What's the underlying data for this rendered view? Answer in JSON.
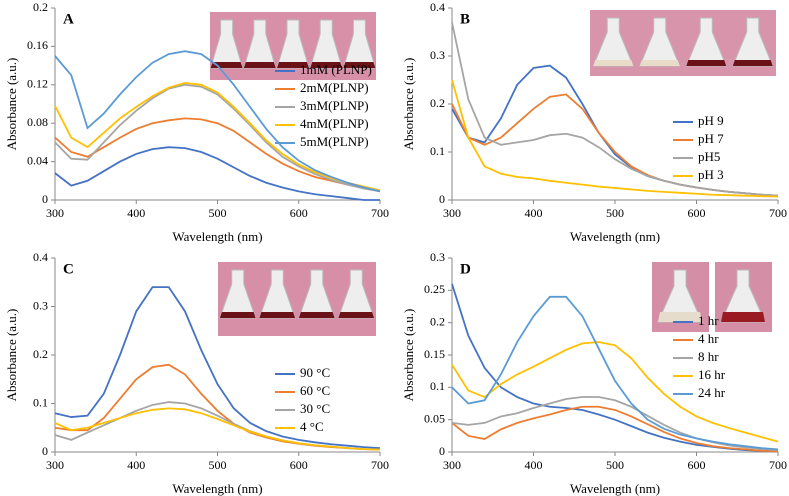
{
  "chart_data": [
    {
      "type": "line",
      "label": "A",
      "xlabel": "Wavelength (nm)",
      "ylabel": "Absorbance (a.u.)",
      "legend": "center right",
      "x": [
        300,
        320,
        340,
        360,
        380,
        400,
        420,
        440,
        460,
        480,
        500,
        520,
        540,
        560,
        580,
        600,
        620,
        640,
        660,
        680,
        700
      ],
      "xlim": [
        300,
        700
      ],
      "xticks": [
        300,
        400,
        500,
        600,
        700
      ],
      "ylim": [
        0,
        0.2
      ],
      "yticks": [
        0,
        0.04,
        0.08,
        0.12,
        0.16,
        0.2
      ],
      "series": [
        {
          "name": "1mM (PLNP)",
          "color": "#4472c4",
          "values": [
            0.028,
            0.015,
            0.02,
            0.03,
            0.04,
            0.048,
            0.053,
            0.055,
            0.054,
            0.05,
            0.043,
            0.034,
            0.025,
            0.018,
            0.013,
            0.009,
            0.006,
            0.004,
            0.002,
            0.0,
            0.0
          ]
        },
        {
          "name": "2mM(PLNP)",
          "color": "#ed7d31",
          "values": [
            0.065,
            0.05,
            0.045,
            0.055,
            0.065,
            0.074,
            0.08,
            0.083,
            0.085,
            0.084,
            0.08,
            0.072,
            0.06,
            0.048,
            0.038,
            0.03,
            0.024,
            0.02,
            0.016,
            0.013,
            0.01
          ]
        },
        {
          "name": "3mM(PLNP)",
          "color": "#a5a5a5",
          "values": [
            0.06,
            0.043,
            0.042,
            0.06,
            0.078,
            0.093,
            0.106,
            0.116,
            0.12,
            0.118,
            0.11,
            0.095,
            0.078,
            0.06,
            0.045,
            0.035,
            0.027,
            0.021,
            0.016,
            0.012,
            0.009
          ]
        },
        {
          "name": "4mM(PLNP)",
          "color": "#ffc000",
          "values": [
            0.098,
            0.065,
            0.055,
            0.07,
            0.085,
            0.097,
            0.108,
            0.117,
            0.122,
            0.12,
            0.112,
            0.097,
            0.08,
            0.062,
            0.048,
            0.037,
            0.029,
            0.023,
            0.018,
            0.014,
            0.01
          ]
        },
        {
          "name": "5mM(PLNP)",
          "color": "#5b9bd5",
          "values": [
            0.15,
            0.13,
            0.075,
            0.09,
            0.11,
            0.128,
            0.143,
            0.152,
            0.155,
            0.152,
            0.14,
            0.12,
            0.097,
            0.074,
            0.055,
            0.041,
            0.031,
            0.024,
            0.018,
            0.013,
            0.009
          ]
        }
      ]
    },
    {
      "type": "line",
      "label": "B",
      "xlabel": "Wavelength (nm)",
      "ylabel": "Absorbance (a.u.)",
      "legend": "lower right",
      "x": [
        300,
        320,
        340,
        360,
        380,
        400,
        420,
        440,
        460,
        480,
        500,
        520,
        540,
        560,
        580,
        600,
        620,
        640,
        660,
        680,
        700
      ],
      "xlim": [
        300,
        700
      ],
      "xticks": [
        300,
        400,
        500,
        600,
        700
      ],
      "ylim": [
        0,
        0.4
      ],
      "yticks": [
        0,
        0.1,
        0.2,
        0.3,
        0.4
      ],
      "series": [
        {
          "name": "pH 9",
          "color": "#4472c4",
          "values": [
            0.19,
            0.13,
            0.12,
            0.17,
            0.24,
            0.275,
            0.28,
            0.255,
            0.2,
            0.14,
            0.095,
            0.068,
            0.05,
            0.04,
            0.032,
            0.026,
            0.021,
            0.017,
            0.014,
            0.011,
            0.009
          ]
        },
        {
          "name": "pH 7",
          "color": "#ed7d31",
          "values": [
            0.2,
            0.13,
            0.115,
            0.13,
            0.16,
            0.19,
            0.215,
            0.22,
            0.19,
            0.14,
            0.1,
            0.07,
            0.052,
            0.04,
            0.032,
            0.026,
            0.021,
            0.017,
            0.014,
            0.011,
            0.009
          ]
        },
        {
          "name": "pH5",
          "color": "#a5a5a5",
          "values": [
            0.37,
            0.21,
            0.13,
            0.115,
            0.12,
            0.125,
            0.135,
            0.138,
            0.13,
            0.11,
            0.085,
            0.065,
            0.05,
            0.04,
            0.032,
            0.026,
            0.021,
            0.017,
            0.014,
            0.011,
            0.009
          ]
        },
        {
          "name": "pH 3",
          "color": "#ffc000",
          "values": [
            0.25,
            0.13,
            0.07,
            0.055,
            0.048,
            0.045,
            0.04,
            0.036,
            0.032,
            0.028,
            0.025,
            0.022,
            0.019,
            0.017,
            0.015,
            0.013,
            0.011,
            0.01,
            0.009,
            0.008,
            0.007
          ]
        }
      ]
    },
    {
      "type": "line",
      "label": "C",
      "xlabel": "Wavelength (nm)",
      "ylabel": "Absorbance (a.u.)",
      "legend": "lower right",
      "x": [
        300,
        320,
        340,
        360,
        380,
        400,
        420,
        440,
        460,
        480,
        500,
        520,
        540,
        560,
        580,
        600,
        620,
        640,
        660,
        680,
        700
      ],
      "xlim": [
        300,
        700
      ],
      "xticks": [
        300,
        400,
        500,
        600,
        700
      ],
      "ylim": [
        0,
        0.4
      ],
      "yticks": [
        0,
        0.1,
        0.2,
        0.3,
        0.4
      ],
      "series": [
        {
          "name": "90 °C",
          "color": "#4472c4",
          "values": [
            0.08,
            0.072,
            0.075,
            0.12,
            0.2,
            0.29,
            0.34,
            0.34,
            0.29,
            0.21,
            0.14,
            0.09,
            0.06,
            0.043,
            0.032,
            0.025,
            0.02,
            0.016,
            0.013,
            0.01,
            0.008
          ]
        },
        {
          "name": "60 °C",
          "color": "#ed7d31",
          "values": [
            0.05,
            0.045,
            0.045,
            0.07,
            0.11,
            0.15,
            0.175,
            0.18,
            0.16,
            0.12,
            0.085,
            0.058,
            0.04,
            0.03,
            0.022,
            0.017,
            0.013,
            0.01,
            0.008,
            0.006,
            0.005
          ]
        },
        {
          "name": "30 °C",
          "color": "#a5a5a5",
          "values": [
            0.035,
            0.025,
            0.04,
            0.055,
            0.07,
            0.085,
            0.097,
            0.103,
            0.1,
            0.09,
            0.075,
            0.058,
            0.043,
            0.032,
            0.024,
            0.018,
            0.014,
            0.011,
            0.008,
            0.006,
            0.005
          ]
        },
        {
          "name": "4 °C",
          "color": "#ffc000",
          "values": [
            0.06,
            0.045,
            0.05,
            0.06,
            0.07,
            0.08,
            0.087,
            0.09,
            0.088,
            0.08,
            0.068,
            0.055,
            0.042,
            0.032,
            0.024,
            0.018,
            0.014,
            0.011,
            0.008,
            0.006,
            0.005
          ]
        }
      ]
    },
    {
      "type": "line",
      "label": "D",
      "xlabel": "Wavelength (nm)",
      "ylabel": "Absorbance (a.u.)",
      "legend": "center right",
      "x": [
        300,
        320,
        340,
        360,
        380,
        400,
        420,
        440,
        460,
        480,
        500,
        520,
        540,
        560,
        580,
        600,
        620,
        640,
        660,
        680,
        700
      ],
      "xlim": [
        300,
        700
      ],
      "xticks": [
        300,
        400,
        500,
        600,
        700
      ],
      "ylim": [
        0,
        0.3
      ],
      "yticks": [
        0,
        0.05,
        0.1,
        0.15,
        0.2,
        0.25,
        0.3
      ],
      "series": [
        {
          "name": "1 hr",
          "color": "#4472c4",
          "values": [
            0.26,
            0.18,
            0.13,
            0.1,
            0.085,
            0.075,
            0.07,
            0.068,
            0.065,
            0.058,
            0.05,
            0.04,
            0.03,
            0.022,
            0.016,
            0.011,
            0.008,
            0.005,
            0.003,
            0.002,
            0.001
          ]
        },
        {
          "name": "4 hr",
          "color": "#ed7d31",
          "values": [
            0.045,
            0.025,
            0.02,
            0.035,
            0.045,
            0.052,
            0.058,
            0.065,
            0.07,
            0.07,
            0.065,
            0.055,
            0.043,
            0.031,
            0.021,
            0.014,
            0.009,
            0.006,
            0.004,
            0.002,
            0.001
          ]
        },
        {
          "name": "8 hr",
          "color": "#a5a5a5",
          "values": [
            0.045,
            0.042,
            0.045,
            0.055,
            0.06,
            0.068,
            0.075,
            0.082,
            0.085,
            0.085,
            0.08,
            0.07,
            0.056,
            0.042,
            0.03,
            0.021,
            0.015,
            0.01,
            0.007,
            0.005,
            0.003
          ]
        },
        {
          "name": "16 hr",
          "color": "#ffc000",
          "values": [
            0.135,
            0.095,
            0.085,
            0.105,
            0.12,
            0.132,
            0.145,
            0.158,
            0.168,
            0.17,
            0.165,
            0.145,
            0.115,
            0.09,
            0.07,
            0.055,
            0.045,
            0.037,
            0.03,
            0.023,
            0.016
          ]
        },
        {
          "name": "24 hr",
          "color": "#5b9bd5",
          "values": [
            0.1,
            0.075,
            0.08,
            0.12,
            0.17,
            0.21,
            0.24,
            0.24,
            0.21,
            0.16,
            0.11,
            0.075,
            0.05,
            0.036,
            0.027,
            0.021,
            0.016,
            0.012,
            0.009,
            0.006,
            0.004
          ]
        }
      ]
    }
  ]
}
